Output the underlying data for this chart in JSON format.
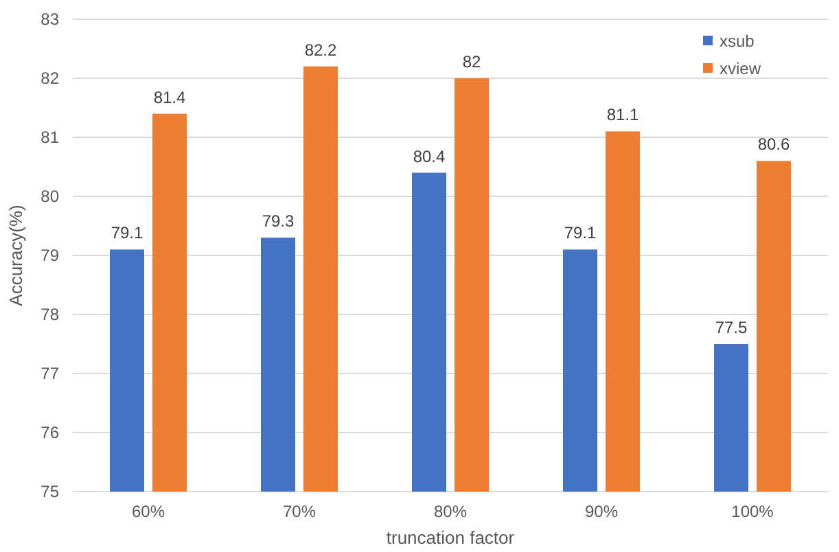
{
  "chart_data": {
    "type": "bar",
    "xlabel": "truncation factor",
    "ylabel": "Accuracy(%)",
    "categories": [
      "60%",
      "70%",
      "80%",
      "90%",
      "100%"
    ],
    "series": [
      {
        "name": "xsub",
        "color": "#4472c4",
        "values": [
          79.1,
          79.3,
          80.4,
          79.1,
          77.5
        ]
      },
      {
        "name": "xview",
        "color": "#ed7d31",
        "values": [
          81.4,
          82.2,
          82,
          81.1,
          80.6
        ]
      }
    ],
    "ylim": [
      75,
      83
    ],
    "yticks": [
      75,
      76,
      77,
      78,
      79,
      80,
      81,
      82,
      83
    ],
    "grid": "y",
    "legend": "top right",
    "data_labels": true
  }
}
